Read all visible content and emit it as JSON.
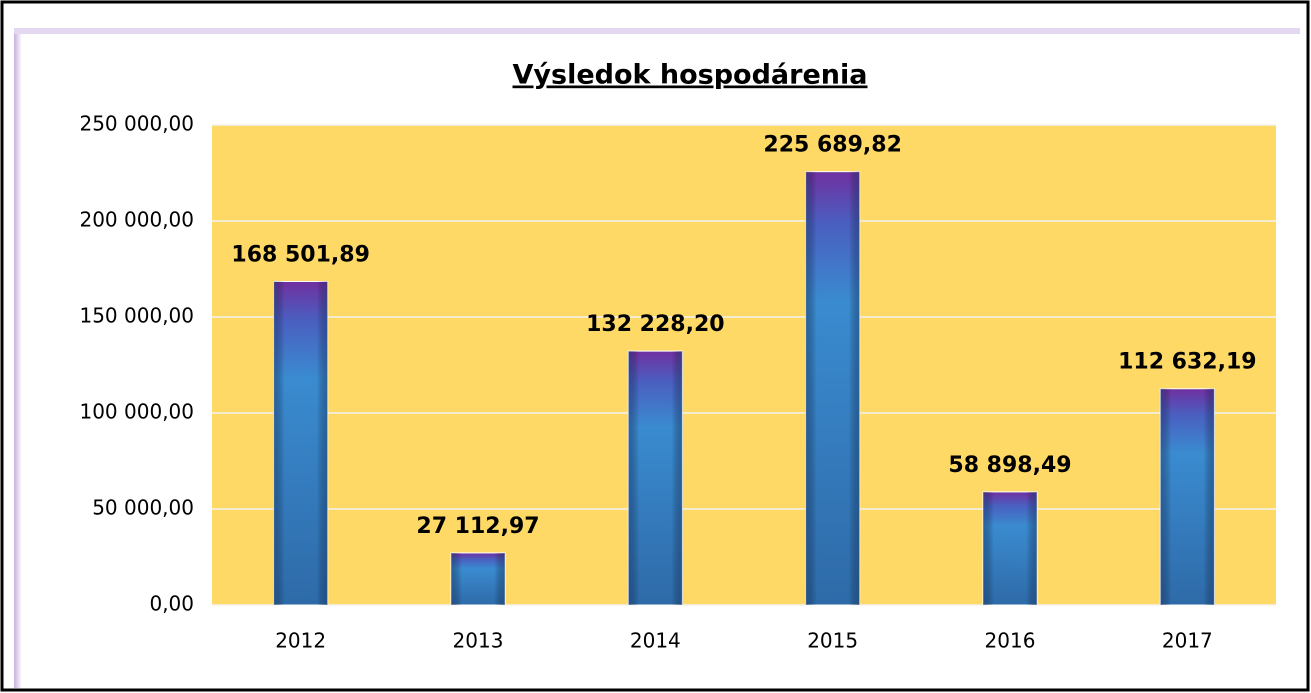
{
  "chart_data": {
    "type": "bar",
    "title": "Výsledok hospodárenia",
    "categories": [
      "2012",
      "2013",
      "2014",
      "2015",
      "2016",
      "2017"
    ],
    "values": [
      168501.89,
      27112.97,
      132228.2,
      225689.82,
      58898.49,
      112632.19
    ],
    "value_labels": [
      "168 501,89",
      "27 112,97",
      "132 228,20",
      "225 689,82",
      "58 898,49",
      "112 632,19"
    ],
    "ylim": [
      0,
      250000
    ],
    "yticks": [
      {
        "value": 0,
        "label": "0,00"
      },
      {
        "value": 50000,
        "label": "50 000,00"
      },
      {
        "value": 100000,
        "label": "100 000,00"
      },
      {
        "value": 150000,
        "label": "150 000,00"
      },
      {
        "value": 200000,
        "label": "200 000,00"
      },
      {
        "value": 250000,
        "label": "250 000,00"
      }
    ],
    "grid": true,
    "color": "#3a8bd0",
    "background": "#ffd966"
  }
}
